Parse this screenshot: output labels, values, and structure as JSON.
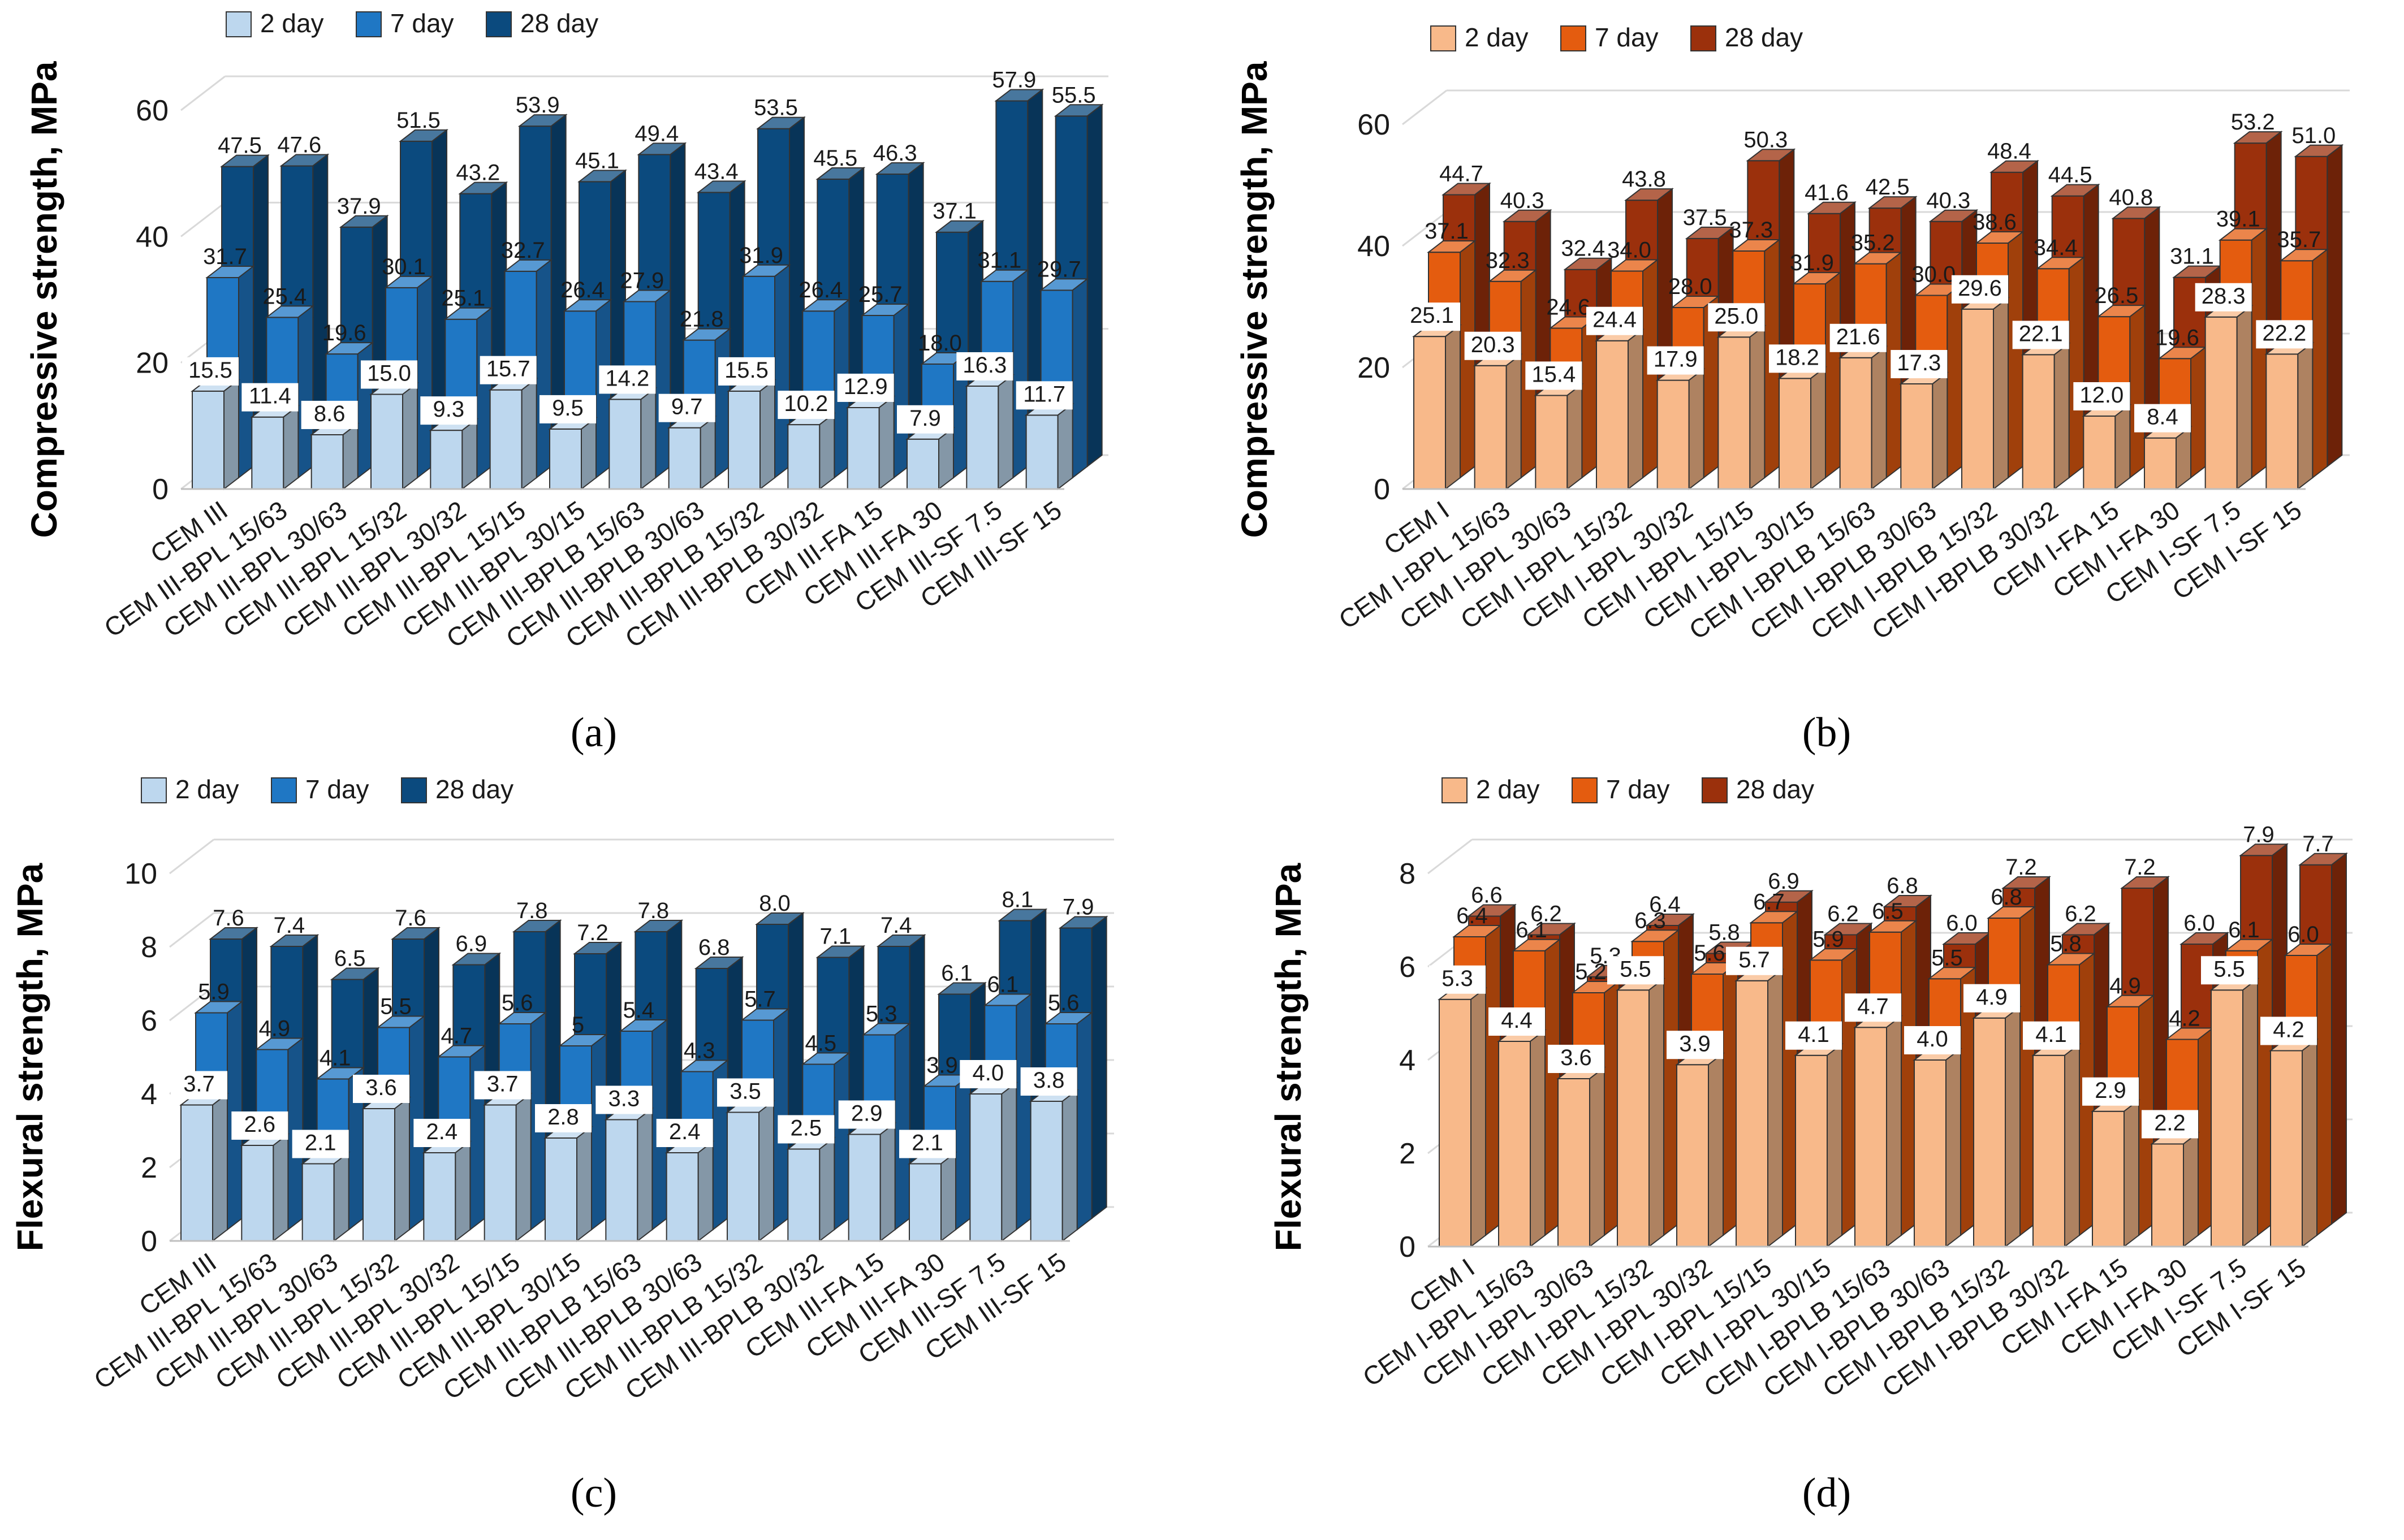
{
  "chart_data": [
    {
      "id": "a",
      "type": "bar",
      "panel_label": "(a)",
      "ylabel": "Compressive strength, MPa",
      "ylim": [
        0,
        60
      ],
      "yticks": [
        0,
        20,
        40,
        60
      ],
      "categories": [
        "CEM III",
        "CEM III-BPL 15/63",
        "CEM III-BPL 30/63",
        "CEM III-BPL 15/32",
        "CEM III-BPL 30/32",
        "CEM III-BPL 15/15",
        "CEM III-BPL 30/15",
        "CEM III-BPLB 15/63",
        "CEM III-BPLB 30/63",
        "CEM III-BPLB 15/32",
        "CEM III-BPLB 30/32",
        "CEM III-FA 15",
        "CEM III-FA 30",
        "CEM III-SF 7.5",
        "CEM III-SF 15"
      ],
      "series": [
        {
          "name": "2 day",
          "values": [
            15.5,
            11.4,
            8.6,
            15.0,
            9.3,
            15.7,
            9.5,
            14.2,
            9.7,
            15.5,
            10.2,
            12.9,
            7.9,
            16.3,
            11.7
          ],
          "labels": [
            "15.5",
            "11.4",
            "8.6",
            "15.0",
            "9.3",
            "15.7",
            "9.5",
            "14.2",
            "9.7",
            "15.5",
            "10.2",
            "12.9",
            "7.9",
            "16.3",
            "11.7"
          ]
        },
        {
          "name": "7 day",
          "values": [
            31.7,
            25.4,
            19.6,
            30.1,
            25.1,
            32.7,
            26.4,
            27.9,
            21.8,
            31.9,
            26.4,
            25.7,
            18.0,
            31.1,
            29.7
          ],
          "labels": [
            "31.7",
            "25.4",
            "19.6",
            "30.1",
            "25.1",
            "32.7",
            "26.4",
            "27.9",
            "21.8",
            "31.9",
            "26.4",
            "25.7",
            "18.0",
            "31.1",
            "29.7"
          ]
        },
        {
          "name": "28 day",
          "values": [
            47.5,
            47.6,
            37.9,
            51.5,
            43.2,
            53.9,
            45.1,
            49.4,
            43.4,
            53.5,
            45.5,
            46.3,
            37.1,
            57.9,
            55.5
          ],
          "labels": [
            "47.5",
            "47.6",
            "37.9",
            "51.5",
            "43.2",
            "53.9",
            "45.1",
            "49.4",
            "43.4",
            "53.5",
            "45.5",
            "46.3",
            "37.1",
            "57.9",
            "55.5"
          ]
        }
      ],
      "colors": [
        "#bdd7ee",
        "#1f77c4",
        "#0b4a7e"
      ],
      "legend": "top-left"
    },
    {
      "id": "b",
      "type": "bar",
      "panel_label": "(b)",
      "ylabel": "Compressive strength, MPa",
      "ylim": [
        0,
        60
      ],
      "yticks": [
        0,
        20,
        40,
        60
      ],
      "categories": [
        "CEM I",
        "CEM I-BPL 15/63",
        "CEM I-BPL 30/63",
        "CEM I-BPL 15/32",
        "CEM I-BPL 30/32",
        "CEM I-BPL 15/15",
        "CEM I-BPL 30/15",
        "CEM I-BPLB 15/63",
        "CEM I-BPLB 30/63",
        "CEM I-BPLB 15/32",
        "CEM I-BPLB 30/32",
        "CEM I-FA 15",
        "CEM I-FA 30",
        "CEM I-SF 7.5",
        "CEM I-SF 15"
      ],
      "series": [
        {
          "name": "2 day",
          "values": [
            25.1,
            20.3,
            15.4,
            24.4,
            17.9,
            25.0,
            18.2,
            21.6,
            17.3,
            29.6,
            22.1,
            12.0,
            8.4,
            28.3,
            22.2
          ],
          "labels": [
            "25.1",
            "20.3",
            "15.4",
            "24.4",
            "17.9",
            "25.0",
            "18.2",
            "21.6",
            "17.3",
            "29.6",
            "22.1",
            "12.0",
            "8.4",
            "28.3",
            "22.2"
          ]
        },
        {
          "name": "7 day",
          "values": [
            37.1,
            32.3,
            24.6,
            34.0,
            28.0,
            37.3,
            31.9,
            35.2,
            30.0,
            38.6,
            34.4,
            26.5,
            19.6,
            39.1,
            35.7
          ],
          "labels": [
            "37.1",
            "32.3",
            "24.6",
            "34.0",
            "28.0",
            "37.3",
            "31.9",
            "35.2",
            "30.0",
            "38.6",
            "34.4",
            "26.5",
            "19.6",
            "39.1",
            "35.7"
          ]
        },
        {
          "name": "28 day",
          "values": [
            44.7,
            40.3,
            32.4,
            43.8,
            37.5,
            50.3,
            41.6,
            42.5,
            40.3,
            48.4,
            44.5,
            40.8,
            31.1,
            53.2,
            51.0
          ],
          "labels": [
            "44.7",
            "40.3",
            "32.4",
            "43.8",
            "37.5",
            "50.3",
            "41.6",
            "42.5",
            "40.3",
            "48.4",
            "44.5",
            "40.8",
            "31.1",
            "53.2",
            "51.0"
          ]
        }
      ],
      "colors": [
        "#f8b98a",
        "#e45c0f",
        "#9b300c"
      ],
      "legend": "top-left"
    },
    {
      "id": "c",
      "type": "bar",
      "panel_label": "(c)",
      "ylabel": "Flexural strength, MPa",
      "ylim": [
        0,
        10
      ],
      "yticks": [
        0,
        2,
        4,
        6,
        8,
        10
      ],
      "categories": [
        "CEM III",
        "CEM III-BPL 15/63",
        "CEM III-BPL 30/63",
        "CEM III-BPL 15/32",
        "CEM III-BPL 30/32",
        "CEM III-BPL 15/15",
        "CEM III-BPL 30/15",
        "CEM III-BPLB 15/63",
        "CEM III-BPLB 30/63",
        "CEM III-BPLB 15/32",
        "CEM III-BPLB 30/32",
        "CEM III-FA 15",
        "CEM III-FA 30",
        "CEM III-SF 7.5",
        "CEM III-SF 15"
      ],
      "series": [
        {
          "name": "2 day",
          "values": [
            3.7,
            2.6,
            2.1,
            3.6,
            2.4,
            3.7,
            2.8,
            3.3,
            2.4,
            3.5,
            2.5,
            2.9,
            2.1,
            4.0,
            3.8
          ],
          "labels": [
            "3.7",
            "2.6",
            "2.1",
            "3.6",
            "2.4",
            "3.7",
            "2.8",
            "3.3",
            "2.4",
            "3.5",
            "2.5",
            "2.9",
            "2.1",
            "4.0",
            "3.8"
          ]
        },
        {
          "name": "7 day",
          "values": [
            5.9,
            4.9,
            4.1,
            5.5,
            4.7,
            5.6,
            5,
            5.4,
            4.3,
            5.7,
            4.5,
            5.3,
            3.9,
            6.1,
            5.6
          ],
          "labels": [
            "5.9",
            "4.9",
            "4.1",
            "5.5",
            "4.7",
            "5.6",
            "5",
            "5.4",
            "4.3",
            "5.7",
            "4.5",
            "5.3",
            "3.9",
            "6.1",
            "5.6"
          ]
        },
        {
          "name": "28 day",
          "values": [
            7.6,
            7.4,
            6.5,
            7.6,
            6.9,
            7.8,
            7.2,
            7.8,
            6.8,
            8.0,
            7.1,
            7.4,
            6.1,
            8.1,
            7.9
          ],
          "labels": [
            "7.6",
            "7.4",
            "6.5",
            "7.6",
            "6.9",
            "7.8",
            "7.2",
            "7.8",
            "6.8",
            "8.0",
            "7.1",
            "7.4",
            "6.1",
            "8.1",
            "7.9"
          ]
        }
      ],
      "colors": [
        "#bdd7ee",
        "#1f77c4",
        "#0b4a7e"
      ],
      "legend": "top-left"
    },
    {
      "id": "d",
      "type": "bar",
      "panel_label": "(d)",
      "ylabel": "Flexural strength, MPa",
      "ylim": [
        0,
        8
      ],
      "yticks": [
        0,
        2,
        4,
        6,
        8
      ],
      "categories": [
        "CEM I",
        "CEM I-BPL 15/63",
        "CEM I-BPL 30/63",
        "CEM I-BPL 15/32",
        "CEM I-BPL 30/32",
        "CEM I-BPL 15/15",
        "CEM I-BPL 30/15",
        "CEM I-BPLB 15/63",
        "CEM I-BPLB 30/63",
        "CEM I-BPLB 15/32",
        "CEM I-BPLB 30/32",
        "CEM I-FA 15",
        "CEM I-FA 30",
        "CEM I-SF 7.5",
        "CEM I-SF 15"
      ],
      "series": [
        {
          "name": "2 day",
          "values": [
            5.3,
            4.4,
            3.6,
            5.5,
            3.9,
            5.7,
            4.1,
            4.7,
            4.0,
            4.9,
            4.1,
            2.9,
            2.2,
            5.5,
            4.2
          ],
          "labels": [
            "5.3",
            "4.4",
            "3.6",
            "5.5",
            "3.9",
            "5.7",
            "4.1",
            "4.7",
            "4.0",
            "4.9",
            "4.1",
            "2.9",
            "2.2",
            "5.5",
            "4.2"
          ]
        },
        {
          "name": "7 day",
          "values": [
            6.4,
            6.1,
            5.2,
            6.3,
            5.6,
            6.7,
            5.9,
            6.5,
            5.5,
            6.8,
            5.8,
            4.9,
            4.2,
            6.1,
            6.0
          ],
          "labels": [
            "6.4",
            "6.1",
            "5.2",
            "6.3",
            "5.6",
            "6.7",
            "5.9",
            "6.5",
            "5.5",
            "6.8",
            "5.8",
            "4.9",
            "4.2",
            "6.1",
            "6.0"
          ]
        },
        {
          "name": "28 day",
          "values": [
            6.6,
            6.2,
            5.3,
            6.4,
            5.8,
            6.9,
            6.2,
            6.8,
            6.0,
            7.2,
            6.2,
            7.2,
            6.0,
            7.9,
            7.7
          ],
          "labels": [
            "6.6",
            "6.2",
            "5.3",
            "6.4",
            "5.8",
            "6.9",
            "6.2",
            "6.8",
            "6.0",
            "7.2",
            "6.2",
            "7.2",
            "6.0",
            "7.9",
            "7.7"
          ]
        }
      ],
      "colors": [
        "#f8b98a",
        "#e45c0f",
        "#9b300c"
      ],
      "legend": "top-left"
    }
  ]
}
